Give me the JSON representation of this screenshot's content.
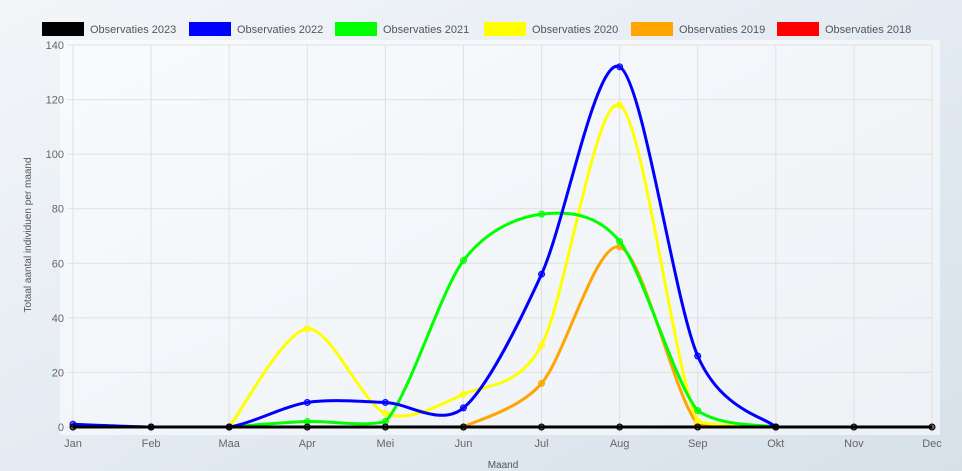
{
  "chart_data": {
    "type": "line",
    "xlabel": "Maand",
    "ylabel": "Totaal aantal individuen per maand",
    "categories": [
      "Jan",
      "Feb",
      "Maa",
      "Apr",
      "Mei",
      "Jun",
      "Jul",
      "Aug",
      "Sep",
      "Okt",
      "Nov",
      "Dec"
    ],
    "ylim": [
      0,
      140
    ],
    "yticks": [
      0,
      20,
      40,
      60,
      80,
      100,
      120,
      140
    ],
    "grid": true,
    "legend_position": "top",
    "series": [
      {
        "name": "Observaties 2023",
        "color": "#000000",
        "values": [
          0,
          0,
          0,
          0,
          0,
          0,
          0,
          0,
          0,
          0,
          0,
          0
        ]
      },
      {
        "name": "Observaties 2022",
        "color": "#0000ff",
        "values": [
          1,
          0,
          0,
          9,
          9,
          7,
          56,
          132,
          26,
          0,
          null,
          null
        ]
      },
      {
        "name": "Observaties 2021",
        "color": "#00ff00",
        "values": [
          null,
          null,
          0,
          2,
          2,
          61,
          78,
          68,
          6,
          0,
          null,
          null
        ]
      },
      {
        "name": "Observaties 2020",
        "color": "#ffff00",
        "values": [
          null,
          null,
          0,
          36,
          5,
          12,
          30,
          118,
          2,
          0,
          null,
          null
        ]
      },
      {
        "name": "Observaties 2019",
        "color": "#ffa500",
        "values": [
          null,
          null,
          null,
          null,
          null,
          0,
          16,
          66,
          1,
          0,
          null,
          null
        ]
      },
      {
        "name": "Observaties 2018",
        "color": "#ff0000",
        "values": [
          null,
          null,
          null,
          null,
          null,
          null,
          null,
          null,
          null,
          null,
          null,
          null
        ]
      }
    ]
  }
}
